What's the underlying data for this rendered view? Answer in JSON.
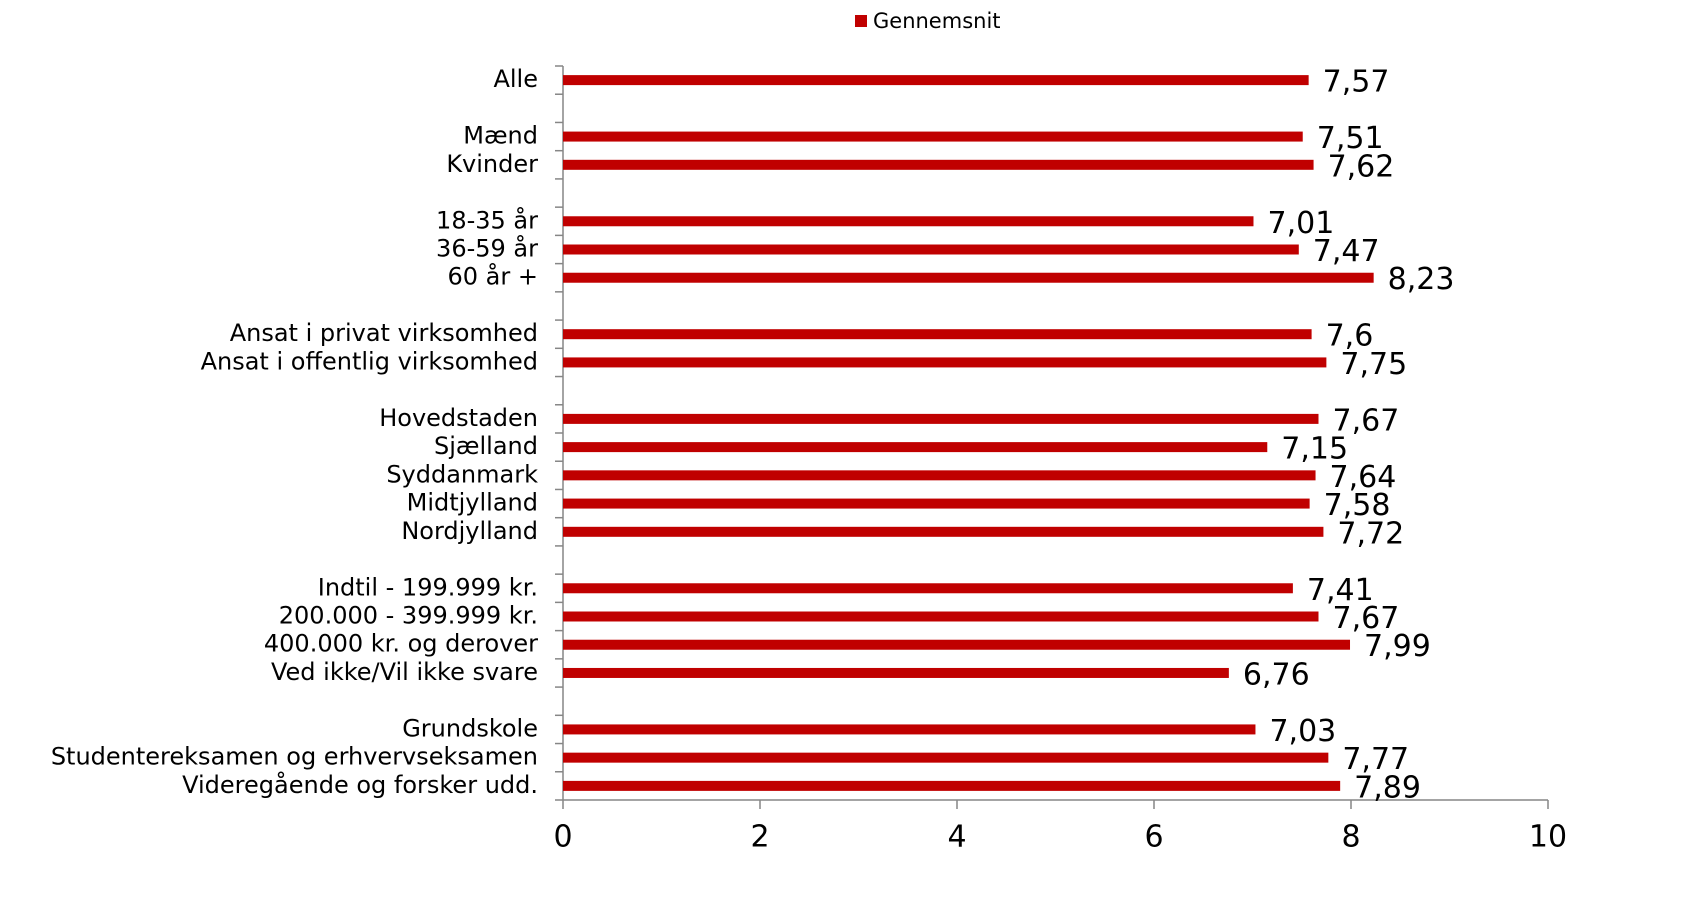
{
  "chart_data": {
    "type": "bar",
    "orientation": "horizontal",
    "categories": [
      "Alle",
      null,
      "Mænd",
      "Kvinder",
      null,
      "18-35 år",
      "36-59 år",
      "60 år +",
      null,
      "Ansat i privat virksomhed",
      "Ansat i offentlig virksomhed",
      null,
      "Hovedstaden",
      "Sjælland",
      "Syddanmark",
      "Midtjylland",
      "Nordjylland",
      null,
      "Indtil - 199.999 kr.",
      "200.000 - 399.999 kr.",
      "400.000 kr. og derover",
      "Ved ikke/Vil ikke svare",
      null,
      "Grundskole",
      "Studentereksamen og erhvervseksamen",
      "Videregående og forsker udd."
    ],
    "series": [
      {
        "name": "Gennemsnit",
        "color": "#c00000",
        "values": [
          7.57,
          null,
          7.51,
          7.62,
          null,
          7.01,
          7.47,
          8.23,
          null,
          7.6,
          7.75,
          null,
          7.67,
          7.15,
          7.64,
          7.58,
          7.72,
          null,
          7.41,
          7.67,
          7.99,
          6.76,
          null,
          7.03,
          7.77,
          7.89
        ],
        "value_labels": [
          "7,57",
          null,
          "7,51",
          "7,62",
          null,
          "7,01",
          "7,47",
          "8,23",
          null,
          "7,6",
          "7,75",
          null,
          "7,67",
          "7,15",
          "7,64",
          "7,58",
          "7,72",
          null,
          "7,41",
          "7,67",
          "7,99",
          "6,76",
          null,
          "7,03",
          "7,77",
          "7,89"
        ]
      }
    ],
    "xlim": [
      0,
      10
    ],
    "xticks": [
      0,
      2,
      4,
      6,
      8,
      10
    ],
    "legend": "top"
  }
}
